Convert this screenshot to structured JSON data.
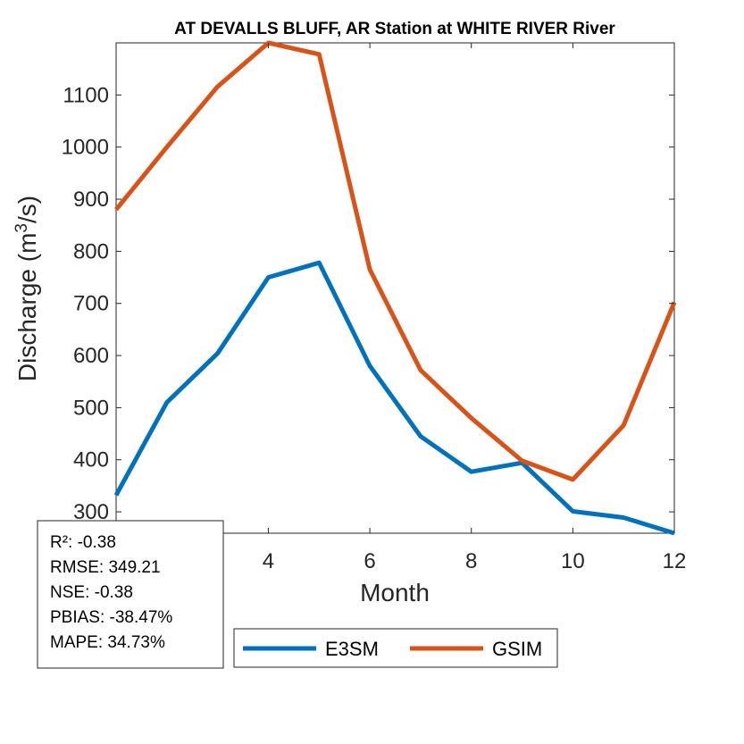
{
  "chart_data": {
    "type": "line",
    "title": "AT DEVALLS BLUFF, AR  Station at  WHITE RIVER  River",
    "xlabel": "Month",
    "ylabel": "Discharge (m³/s)",
    "ylabel_parts": {
      "pre": "Discharge (m",
      "sup": "3",
      "post": "/s)"
    },
    "x": [
      1,
      2,
      3,
      4,
      5,
      6,
      7,
      8,
      9,
      10,
      11,
      12
    ],
    "xlim": [
      1,
      12
    ],
    "ylim": [
      259,
      1200
    ],
    "xticks": [
      "4",
      "6",
      "8",
      "10",
      "12"
    ],
    "yticks": [
      "300",
      "400",
      "500",
      "600",
      "700",
      "800",
      "900",
      "1000",
      "1100"
    ],
    "grid": false,
    "legend_position": "bottom-outside",
    "series": [
      {
        "name": "E3SM",
        "color": "#0072BD",
        "values": [
          332,
          510,
          604,
          750,
          778,
          580,
          445,
          377,
          394,
          301,
          289,
          259
        ]
      },
      {
        "name": "GSIM",
        "color": "#D95319",
        "values": [
          880,
          1000,
          1116,
          1200,
          1178,
          765,
          572,
          480,
          398,
          362,
          466,
          702
        ]
      }
    ],
    "stats": [
      "R²: -0.38",
      "RMSE: 349.21",
      "NSE: -0.38",
      "PBIAS: -38.47%",
      "MAPE: 34.73%"
    ]
  }
}
